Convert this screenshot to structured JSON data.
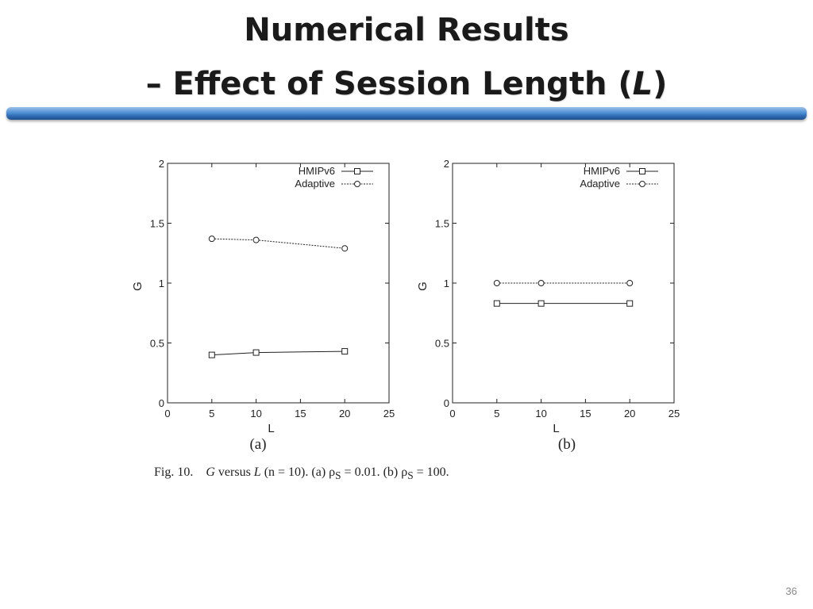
{
  "slide": {
    "title_line1": "Numerical Results",
    "title_line2_prefix": "– Effect of Session Length (",
    "title_line2_var": "L",
    "title_line2_suffix": ")",
    "page_number": "36"
  },
  "caption": {
    "label": "Fig. 10.",
    "text_pre": "G",
    "text_mid": " versus ",
    "text_var": "L",
    "text_rest": " (n = 10). (a) ρ",
    "sub_s": "S",
    "text_a": " = 0.01. (b) ρ",
    "sub_s2": "S",
    "text_b": " = 100."
  },
  "colors": {
    "bar": "#2f6db4",
    "line": "#222222"
  },
  "chart_data": [
    {
      "type": "line",
      "panel_label": "(a)",
      "xlabel": "L",
      "ylabel": "G",
      "xlim": [
        0,
        25
      ],
      "ylim": [
        0,
        2
      ],
      "xticks": [
        0,
        5,
        10,
        15,
        20,
        25
      ],
      "yticks": [
        0,
        0.5,
        1,
        1.5,
        2
      ],
      "ytick_labels": [
        "0",
        "0.5",
        "1",
        "1.5",
        "2"
      ],
      "legend_position": "top-right",
      "x": [
        5,
        10,
        20
      ],
      "series": [
        {
          "name": "HMIPv6",
          "marker": "square",
          "style": "solid",
          "values": [
            0.4,
            0.42,
            0.43
          ]
        },
        {
          "name": "Adaptive",
          "marker": "circle",
          "style": "dotted",
          "values": [
            1.37,
            1.36,
            1.29
          ]
        }
      ]
    },
    {
      "type": "line",
      "panel_label": "(b)",
      "xlabel": "L",
      "ylabel": "G",
      "xlim": [
        0,
        25
      ],
      "ylim": [
        0,
        2
      ],
      "xticks": [
        0,
        5,
        10,
        15,
        20,
        25
      ],
      "yticks": [
        0,
        0.5,
        1,
        1.5,
        2
      ],
      "ytick_labels": [
        "0",
        "0.5",
        "1",
        "1.5",
        "2"
      ],
      "legend_position": "top-right",
      "x": [
        5,
        10,
        20
      ],
      "series": [
        {
          "name": "HMIPv6",
          "marker": "square",
          "style": "solid",
          "values": [
            0.83,
            0.83,
            0.83
          ]
        },
        {
          "name": "Adaptive",
          "marker": "circle",
          "style": "dotted",
          "values": [
            1.0,
            1.0,
            1.0
          ]
        }
      ]
    }
  ]
}
